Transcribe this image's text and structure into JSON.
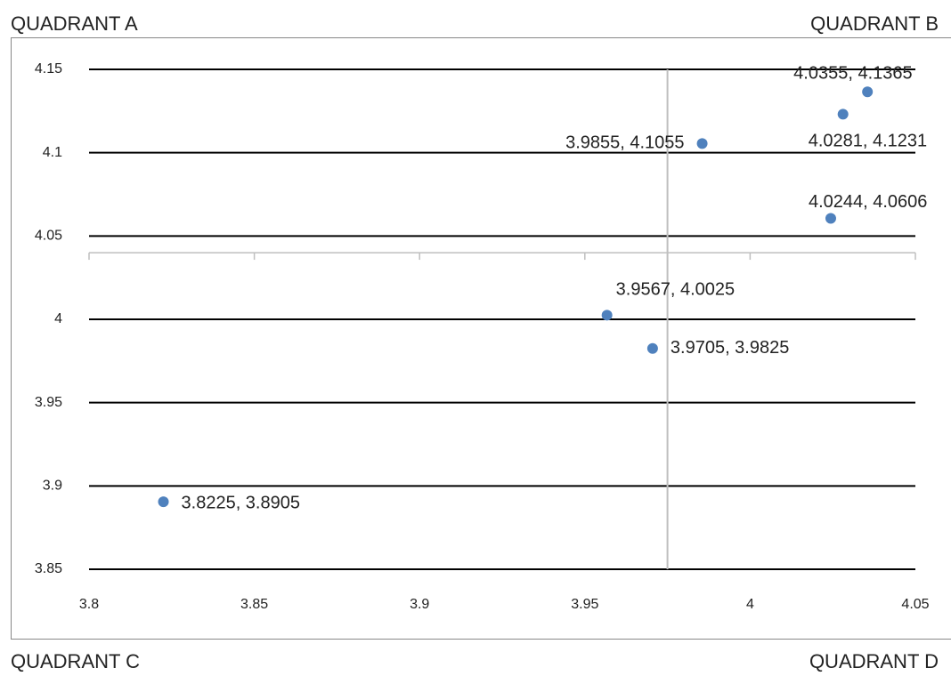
{
  "chart_data": {
    "type": "scatter",
    "quadrant_labels": [
      "QUADRANT A",
      "QUADRANT B",
      "QUADRANT C",
      "QUADRANT D"
    ],
    "series": [
      {
        "color": "#4f81bd",
        "x": [
          3.8225,
          3.9567,
          3.9705,
          3.9855,
          4.0244,
          4.0281,
          4.0355
        ],
        "values": [
          3.8905,
          4.0025,
          3.9825,
          4.1055,
          4.0606,
          4.1231,
          4.1365
        ],
        "value_labels": [
          "3.8225, 3.8905",
          "3.9567, 4.0025",
          "3.9705, 3.9825",
          "3.9855, 4.1055",
          "4.0244, 4.0606",
          "4.0281, 4.1231",
          "4.0355, 4.1365"
        ]
      }
    ],
    "xlim": [
      3.8,
      4.05
    ],
    "xticks": [
      3.8,
      3.85,
      3.9,
      3.95,
      4,
      4.05
    ],
    "ylim": [
      3.85,
      4.15
    ],
    "yticks": [
      3.85,
      3.9,
      3.95,
      4,
      4.05,
      4.1,
      4.15
    ],
    "x_cross": 3.975,
    "y_cross": 4.04,
    "grid": true
  }
}
